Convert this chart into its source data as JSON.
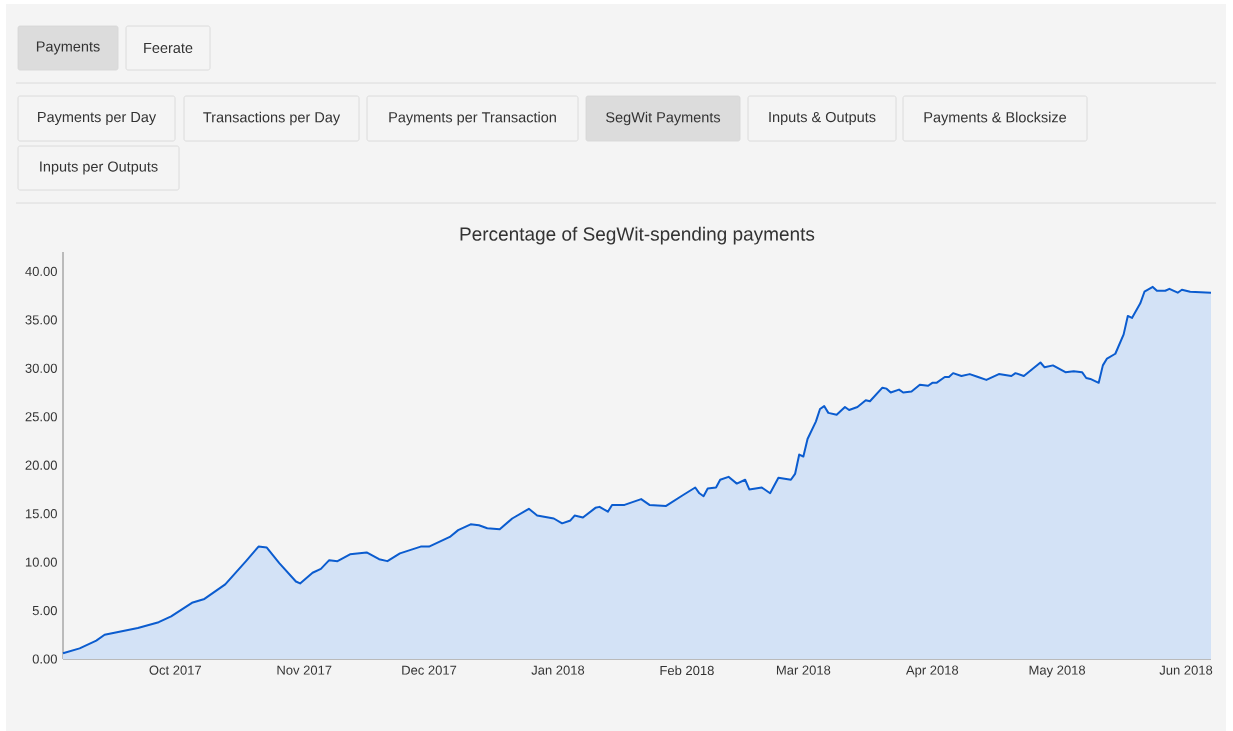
{
  "chart_data": {
    "type": "area",
    "title": "Percentage of SegWit-spending payments",
    "annotations": [
      "Payments",
      "Feerate",
      "Payments per Day",
      "Transactions per Day",
      "Payments per Transaction",
      "SegWit Payments",
      "Inputs & Outputs",
      "Payments & Blocksize",
      "Inputs per Outputs"
    ],
    "x": [
      "2017-09-04",
      "2017-09-08",
      "2017-09-12",
      "2017-09-14",
      "2017-09-22",
      "2017-09-27",
      "2017-09-30",
      "2017-10-05",
      "2017-10-08",
      "2017-10-13",
      "2017-10-18",
      "2017-10-21",
      "2017-10-23",
      "2017-10-26",
      "2017-10-30",
      "2017-10-31",
      "2017-11-03",
      "2017-11-05",
      "2017-11-07",
      "2017-11-09",
      "2017-11-12",
      "2017-11-16",
      "2017-11-19",
      "2017-11-21",
      "2017-11-24",
      "2017-11-29",
      "2017-12-01",
      "2017-12-06",
      "2017-12-08",
      "2017-12-11",
      "2017-12-13",
      "2017-12-15",
      "2017-12-18",
      "2017-12-21",
      "2017-12-25",
      "2017-12-27",
      "2017-12-31",
      "2018-01-02",
      "2018-01-04",
      "2018-01-05",
      "2018-01-07",
      "2018-01-10",
      "2018-01-11",
      "2018-01-13",
      "2018-01-14",
      "2018-01-17",
      "2018-01-21",
      "2018-01-23",
      "2018-01-27",
      "2018-01-31",
      "2018-02-03",
      "2018-02-04",
      "2018-02-05",
      "2018-02-06",
      "2018-02-08",
      "2018-02-09",
      "2018-02-11",
      "2018-02-13",
      "2018-02-15",
      "2018-02-16",
      "2018-02-19",
      "2018-02-21",
      "2018-02-23",
      "2018-02-26",
      "2018-02-27",
      "2018-02-28",
      "2018-03-01",
      "2018-03-02",
      "2018-03-04",
      "2018-03-05",
      "2018-03-06",
      "2018-03-07",
      "2018-03-09",
      "2018-03-11",
      "2018-03-12",
      "2018-03-14",
      "2018-03-16",
      "2018-03-17",
      "2018-03-20",
      "2018-03-21",
      "2018-03-22",
      "2018-03-24",
      "2018-03-25",
      "2018-03-27",
      "2018-03-29",
      "2018-03-31",
      "2018-04-01",
      "2018-04-02",
      "2018-04-04",
      "2018-04-05",
      "2018-04-06",
      "2018-04-08",
      "2018-04-10",
      "2018-04-12",
      "2018-04-14",
      "2018-04-17",
      "2018-04-20",
      "2018-04-21",
      "2018-04-23",
      "2018-04-25",
      "2018-04-27",
      "2018-04-28",
      "2018-04-30",
      "2018-05-03",
      "2018-05-05",
      "2018-05-07",
      "2018-05-08",
      "2018-05-09",
      "2018-05-11",
      "2018-05-12",
      "2018-05-13",
      "2018-05-15",
      "2018-05-17",
      "2018-05-18",
      "2018-05-19",
      "2018-05-21",
      "2018-05-22",
      "2018-05-24",
      "2018-05-25",
      "2018-05-27",
      "2018-05-28",
      "2018-05-30",
      "2018-05-31",
      "2018-06-02",
      "2018-06-07"
    ],
    "series": [
      {
        "color": "#0b5ccf",
        "values": [
          0.6,
          1.1,
          1.9,
          2.5,
          3.2,
          3.8,
          4.4,
          5.8,
          6.2,
          7.7,
          10.1,
          11.6,
          11.5,
          9.9,
          8.0,
          7.8,
          8.9,
          9.3,
          10.2,
          10.1,
          10.8,
          11.0,
          10.3,
          10.1,
          10.9,
          11.6,
          11.6,
          12.6,
          13.3,
          13.9,
          13.8,
          13.5,
          13.4,
          14.5,
          15.5,
          14.8,
          14.5,
          14.0,
          14.3,
          14.8,
          14.6,
          15.6,
          15.7,
          15.2,
          15.9,
          15.9,
          16.5,
          15.9,
          15.8,
          16.9,
          17.7,
          17.1,
          16.8,
          17.6,
          17.7,
          18.5,
          18.8,
          18.1,
          18.5,
          17.5,
          17.7,
          17.1,
          18.7,
          18.5,
          19.1,
          21.1,
          20.9,
          22.7,
          24.5,
          25.8,
          26.1,
          25.4,
          25.2,
          26.0,
          25.7,
          26.0,
          26.7,
          26.6,
          28.0,
          27.9,
          27.5,
          27.8,
          27.5,
          27.6,
          28.3,
          28.2,
          28.5,
          28.5,
          29.1,
          29.1,
          29.5,
          29.2,
          29.4,
          29.1,
          28.8,
          29.4,
          29.2,
          29.5,
          29.2,
          29.9,
          30.6,
          30.1,
          30.3,
          29.6,
          29.7,
          29.6,
          29.0,
          28.9,
          28.5,
          30.3,
          31.0,
          31.5,
          33.5,
          35.4,
          35.2,
          36.7,
          37.9,
          38.4,
          38.0,
          38.0,
          38.2,
          37.8,
          38.1,
          37.9,
          37.8
        ]
      }
    ],
    "xlim": [
      "2017-09-04",
      "2018-06-07"
    ],
    "xticks": [
      {
        "value": "2017-10-01",
        "label": "Oct 2017"
      },
      {
        "value": "2017-11-01",
        "label": "Nov 2017"
      },
      {
        "value": "2017-12-01",
        "label": "Dec 2017"
      },
      {
        "value": "2018-01-01",
        "label": "Jan 2018"
      },
      {
        "value": "2018-02-01",
        "label": "Feb 2018"
      },
      {
        "value": "2018-03-01",
        "label": "Mar 2018"
      },
      {
        "value": "2018-04-01",
        "label": "Apr 2018"
      },
      {
        "value": "2018-05-01",
        "label": "May 2018"
      },
      {
        "value": "2018-06-01",
        "label": "Jun 2018"
      }
    ],
    "ylim": [
      0,
      42
    ],
    "yticks": [
      {
        "value": 0,
        "label": "0.00"
      },
      {
        "value": 5,
        "label": "5.00"
      },
      {
        "value": 10,
        "label": "10.00"
      },
      {
        "value": 15,
        "label": "15.00"
      },
      {
        "value": 20,
        "label": "20.00"
      },
      {
        "value": 25,
        "label": "25.00"
      },
      {
        "value": 30,
        "label": "30.00"
      },
      {
        "value": 35,
        "label": "35.00"
      },
      {
        "value": 40,
        "label": "40.00"
      }
    ]
  }
}
